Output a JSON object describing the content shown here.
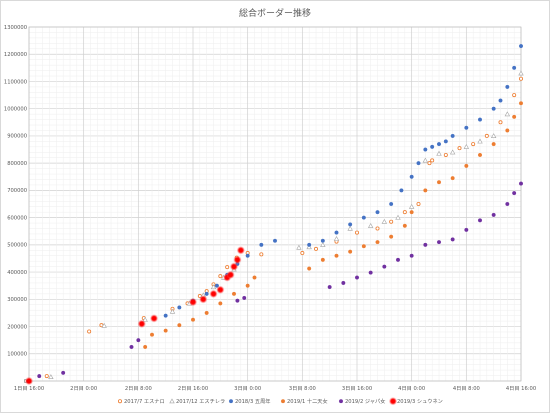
{
  "chart_data": {
    "type": "scatter",
    "title": "総合ボーダー推移",
    "xlabel": "",
    "ylabel": "",
    "ylim": [
      0,
      1300000
    ],
    "y_ticks": [
      0,
      100000,
      200000,
      300000,
      400000,
      500000,
      600000,
      700000,
      800000,
      900000,
      1000000,
      1100000,
      1200000,
      1300000
    ],
    "x_ticks": [
      "1日目 16:00",
      "2日目 0:00",
      "2日目 8:00",
      "2日目 16:00",
      "3日目 0:00",
      "3日目 8:00",
      "3日目 16:00",
      "4日目 0:00",
      "4日目 8:00",
      "4日目 16:00"
    ],
    "x_unit": "hours elapsed from 1日目 16:00",
    "xlim": [
      0,
      72
    ],
    "grid": true,
    "legend_position": "bottom",
    "series": [
      {
        "name": "2017/7 エスナロ",
        "color": "#ED7D31",
        "marker": "circle-open",
        "points": [
          [
            0,
            0
          ],
          [
            2.6,
            18000
          ],
          [
            8.8,
            182000
          ],
          [
            10.6,
            205000
          ],
          [
            16.8,
            231000
          ],
          [
            21,
            265000
          ],
          [
            23.2,
            285000
          ],
          [
            25,
            312000
          ],
          [
            26,
            330000
          ],
          [
            27,
            355000
          ],
          [
            28,
            385000
          ],
          [
            29,
            418000
          ],
          [
            30.4,
            453000
          ],
          [
            32,
            470000
          ],
          [
            34,
            465000
          ],
          [
            40,
            470000
          ],
          [
            42,
            485000
          ],
          [
            45,
            512000
          ],
          [
            48,
            545000
          ],
          [
            51,
            560000
          ],
          [
            53,
            585000
          ],
          [
            55,
            620000
          ],
          [
            57,
            650000
          ],
          [
            58.6,
            800000
          ],
          [
            59,
            810000
          ],
          [
            61,
            830000
          ],
          [
            63,
            855000
          ],
          [
            65,
            870000
          ],
          [
            67,
            900000
          ],
          [
            69,
            950000
          ],
          [
            71,
            1050000
          ],
          [
            72,
            1110000
          ]
        ]
      },
      {
        "name": "2017/12 エスチレラ",
        "color": "#A5A5A5",
        "marker": "triangle-open",
        "points": [
          [
            0,
            0
          ],
          [
            3.2,
            15000
          ],
          [
            11,
            203000
          ],
          [
            17,
            225000
          ],
          [
            21,
            255000
          ],
          [
            23.5,
            285000
          ],
          [
            25.5,
            315000
          ],
          [
            27,
            345000
          ],
          [
            28.5,
            380000
          ],
          [
            30,
            410000
          ],
          [
            39.5,
            490000
          ],
          [
            41,
            492000
          ],
          [
            43,
            500000
          ],
          [
            45,
            522000
          ],
          [
            47,
            560000
          ],
          [
            50,
            570000
          ],
          [
            52,
            585000
          ],
          [
            54,
            600000
          ],
          [
            56,
            640000
          ],
          [
            58,
            810000
          ],
          [
            60,
            835000
          ],
          [
            62,
            840000
          ],
          [
            64,
            860000
          ],
          [
            66,
            880000
          ],
          [
            68,
            900000
          ],
          [
            70,
            980000
          ],
          [
            72,
            1130000
          ]
        ]
      },
      {
        "name": "2018/3 五周年",
        "color": "#4472C4",
        "marker": "circle",
        "points": [
          [
            0,
            0
          ],
          [
            20,
            240000
          ],
          [
            22,
            270000
          ],
          [
            24,
            295000
          ],
          [
            26,
            320000
          ],
          [
            27.5,
            350000
          ],
          [
            29,
            390000
          ],
          [
            30.5,
            430000
          ],
          [
            32,
            460000
          ],
          [
            34,
            500000
          ],
          [
            36,
            515000
          ],
          [
            41,
            500000
          ],
          [
            43,
            515000
          ],
          [
            45,
            545000
          ],
          [
            47,
            575000
          ],
          [
            49,
            600000
          ],
          [
            51,
            620000
          ],
          [
            53,
            650000
          ],
          [
            54.5,
            700000
          ],
          [
            56,
            750000
          ],
          [
            57,
            800000
          ],
          [
            58,
            850000
          ],
          [
            59,
            860000
          ],
          [
            60,
            870000
          ],
          [
            61,
            880000
          ],
          [
            62,
            900000
          ],
          [
            64,
            930000
          ],
          [
            66,
            960000
          ],
          [
            68,
            1000000
          ],
          [
            69,
            1030000
          ],
          [
            70,
            1080000
          ],
          [
            71,
            1150000
          ],
          [
            72,
            1230000
          ]
        ]
      },
      {
        "name": "2019/1 十二天女",
        "color": "#ED7D31",
        "marker": "circle",
        "points": [
          [
            0,
            0
          ],
          [
            17,
            125000
          ],
          [
            18,
            170000
          ],
          [
            20,
            185000
          ],
          [
            22,
            205000
          ],
          [
            24,
            225000
          ],
          [
            26,
            250000
          ],
          [
            28,
            285000
          ],
          [
            30,
            320000
          ],
          [
            32,
            350000
          ],
          [
            33,
            380000
          ],
          [
            41,
            413000
          ],
          [
            43,
            445000
          ],
          [
            45,
            460000
          ],
          [
            47,
            475000
          ],
          [
            49,
            495000
          ],
          [
            51,
            510000
          ],
          [
            53,
            530000
          ],
          [
            55,
            570000
          ],
          [
            56,
            620000
          ],
          [
            58,
            700000
          ],
          [
            60,
            730000
          ],
          [
            62,
            745000
          ],
          [
            64,
            790000
          ],
          [
            66,
            830000
          ],
          [
            68,
            870000
          ],
          [
            70,
            920000
          ],
          [
            71,
            970000
          ],
          [
            72,
            1020000
          ]
        ]
      },
      {
        "name": "2019/2 ジャパ女",
        "color": "#7030A0",
        "marker": "circle",
        "points": [
          [
            0,
            0
          ],
          [
            1.5,
            18000
          ],
          [
            5,
            30000
          ],
          [
            15,
            125000
          ],
          [
            16,
            150000
          ],
          [
            30.5,
            295000
          ],
          [
            31.5,
            305000
          ],
          [
            44,
            345000
          ],
          [
            46,
            360000
          ],
          [
            48,
            380000
          ],
          [
            50,
            398000
          ],
          [
            52,
            420000
          ],
          [
            54,
            445000
          ],
          [
            56,
            460000
          ],
          [
            58,
            500000
          ],
          [
            60,
            510000
          ],
          [
            62,
            520000
          ],
          [
            64,
            555000
          ],
          [
            66,
            590000
          ],
          [
            68,
            610000
          ],
          [
            70,
            650000
          ],
          [
            71,
            690000
          ],
          [
            72,
            725000
          ]
        ]
      },
      {
        "name": "2019/3 シュウネン",
        "color": "#FF0000",
        "marker": "circle-glow",
        "points": [
          [
            0,
            0
          ],
          [
            16.5,
            210000
          ],
          [
            18.3,
            230000
          ],
          [
            24,
            290000
          ],
          [
            25.5,
            300000
          ],
          [
            27,
            320000
          ],
          [
            28,
            335000
          ],
          [
            29,
            380000
          ],
          [
            29.5,
            390000
          ],
          [
            30,
            420000
          ],
          [
            30.5,
            445000
          ],
          [
            31,
            480000
          ]
        ]
      }
    ]
  }
}
